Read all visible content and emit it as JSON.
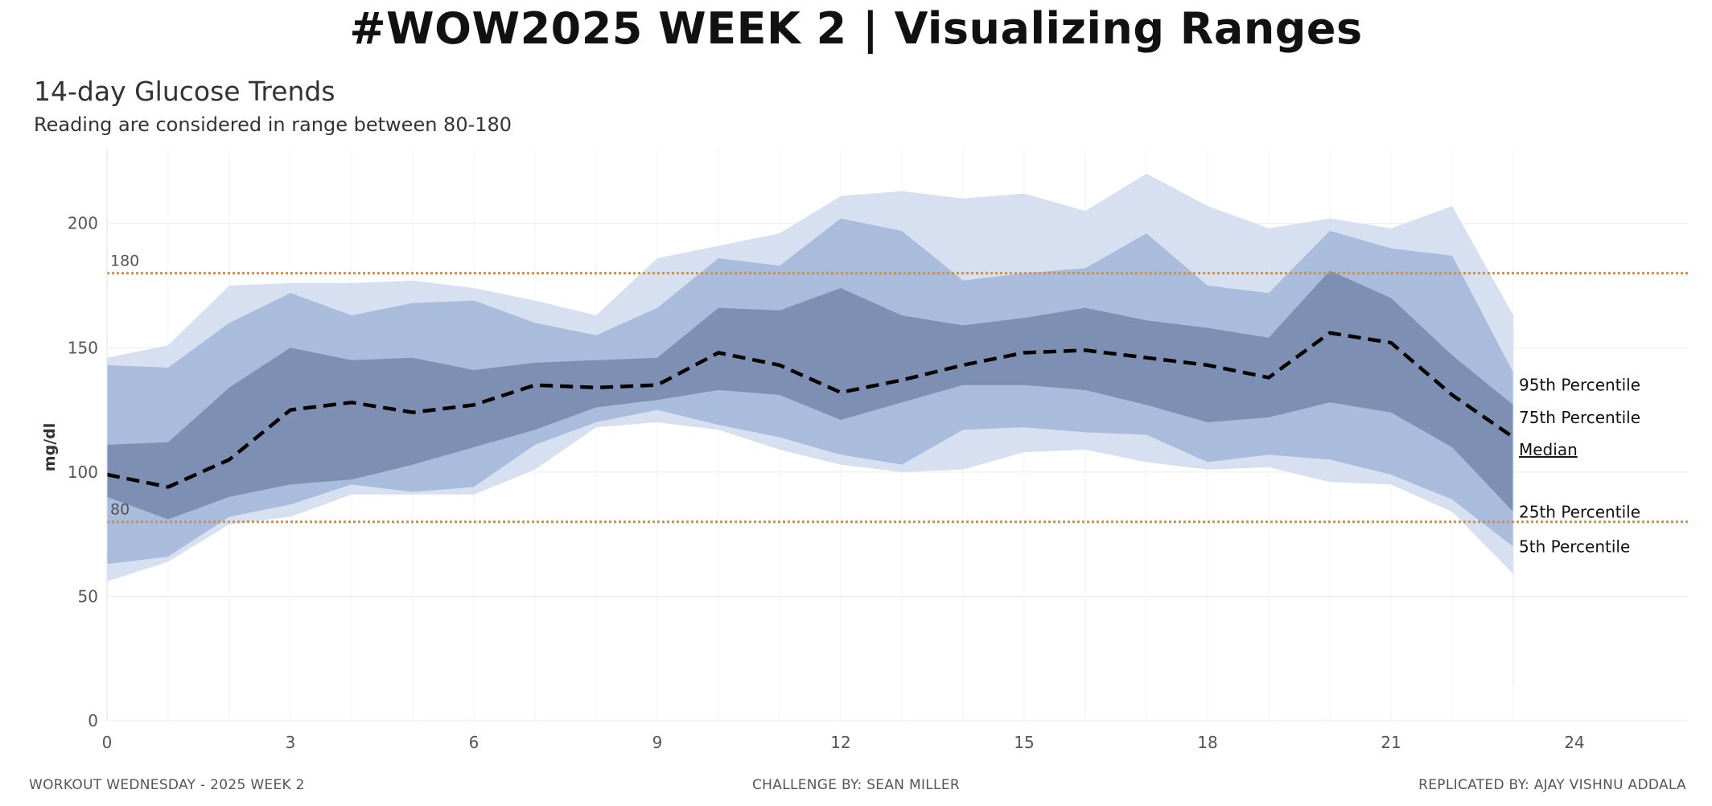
{
  "header": {
    "title": "#WOW2025 WEEK 2 | Visualizing Ranges"
  },
  "footer": {
    "left": "WORKOUT WEDNESDAY - 2025 WEEK 2",
    "center": "CHALLENGE BY: SEAN MILLER",
    "right": "REPLICATED BY: AJAY VISHNU ADDALA"
  },
  "colors": {
    "band_outer": "#d6e0f1",
    "band_middle": "#a9bcdb",
    "band_inner": "#7d90b3",
    "median": "#000000",
    "reference_line": "#e08a2c",
    "gridline": "#ececec"
  },
  "chart_data": {
    "type": "area",
    "title": "14-day Glucose Trends",
    "subtitle": "Reading are considered in range between 80-180",
    "xlabel": "",
    "ylabel": "mg/dl",
    "xlim": [
      0,
      26
    ],
    "ylim": [
      0,
      230
    ],
    "x_ticks": [
      0,
      3,
      6,
      9,
      12,
      15,
      18,
      21,
      24
    ],
    "y_ticks": [
      0,
      50,
      100,
      150,
      200
    ],
    "grid": true,
    "reference_lines": [
      {
        "value": 180,
        "label": "180"
      },
      {
        "value": 80,
        "label": "80"
      }
    ],
    "x": [
      0,
      1,
      2,
      3,
      4,
      5,
      6,
      7,
      8,
      9,
      10,
      11,
      12,
      13,
      14,
      15,
      16,
      17,
      18,
      19,
      20,
      21,
      22,
      23
    ],
    "series": [
      {
        "name": "95th Percentile",
        "values": [
          146,
          151,
          175,
          176,
          176,
          177,
          174,
          169,
          163,
          186,
          191,
          196,
          211,
          213,
          210,
          212,
          205,
          220,
          207,
          198,
          202,
          198,
          207,
          163
        ]
      },
      {
        "name": "75th Percentile",
        "values": [
          143,
          142,
          160,
          172,
          163,
          168,
          169,
          160,
          155,
          166,
          186,
          183,
          202,
          197,
          177,
          180,
          182,
          196,
          175,
          172,
          197,
          190,
          187,
          140
        ]
      },
      {
        "name": "Median",
        "values": [
          99,
          94,
          105,
          125,
          128,
          124,
          127,
          135,
          134,
          135,
          148,
          143,
          132,
          137,
          143,
          148,
          149,
          146,
          143,
          138,
          156,
          152,
          131,
          114
        ]
      },
      {
        "name": "25th Percentile",
        "values": [
          90,
          81,
          90,
          95,
          97,
          103,
          110,
          117,
          126,
          129,
          133,
          131,
          121,
          128,
          135,
          135,
          133,
          127,
          120,
          122,
          128,
          124,
          110,
          84
        ]
      },
      {
        "name": "5th Percentile",
        "values": [
          56,
          64,
          79,
          82,
          91,
          91,
          91,
          101,
          118,
          120,
          117,
          109,
          103,
          100,
          101,
          108,
          109,
          104,
          101,
          102,
          96,
          95,
          84,
          59
        ]
      }
    ],
    "band_edges": {
      "p95_upper": [
        146,
        151,
        175,
        176,
        176,
        177,
        174,
        169,
        163,
        186,
        191,
        196,
        211,
        213,
        210,
        212,
        205,
        220,
        207,
        198,
        202,
        198,
        207,
        163
      ],
      "p75_upper": [
        143,
        142,
        160,
        172,
        163,
        168,
        169,
        160,
        155,
        166,
        186,
        183,
        202,
        197,
        177,
        180,
        182,
        196,
        175,
        172,
        197,
        190,
        187,
        140
      ],
      "iqr_upper": [
        111,
        112,
        134,
        150,
        145,
        146,
        141,
        144,
        145,
        146,
        166,
        165,
        174,
        163,
        159,
        162,
        166,
        161,
        158,
        154,
        181,
        170,
        147,
        127
      ],
      "iqr_lower": [
        90,
        81,
        90,
        95,
        97,
        103,
        110,
        117,
        126,
        129,
        133,
        131,
        121,
        128,
        135,
        135,
        133,
        127,
        120,
        122,
        128,
        124,
        110,
        84
      ],
      "p25_lower": [
        63,
        66,
        82,
        87,
        95,
        92,
        94,
        111,
        120,
        125,
        119,
        114,
        107,
        103,
        117,
        118,
        116,
        115,
        104,
        107,
        105,
        99,
        89,
        70
      ],
      "p5_lower": [
        56,
        64,
        79,
        82,
        91,
        91,
        91,
        101,
        118,
        120,
        117,
        109,
        103,
        100,
        101,
        108,
        109,
        104,
        101,
        102,
        96,
        95,
        84,
        59
      ]
    },
    "band_labels": [
      {
        "text": "95th Percentile",
        "value": 135
      },
      {
        "text": "75th Percentile",
        "value": 122
      },
      {
        "text": "Median",
        "value": 109
      },
      {
        "text": "25th Percentile",
        "value": 84
      },
      {
        "text": "5th Percentile",
        "value": 70
      }
    ]
  }
}
